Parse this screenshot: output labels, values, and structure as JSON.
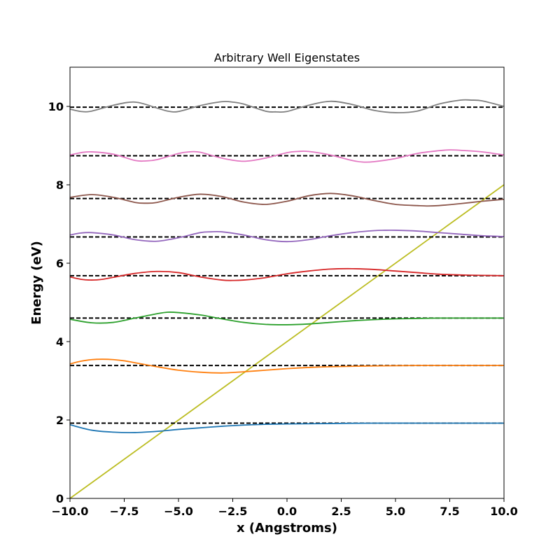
{
  "chart_data": {
    "type": "line",
    "title": "Arbitrary Well Eigenstates",
    "xlabel": "x (Angstroms)",
    "ylabel": "Energy (eV)",
    "xlim": [
      -10,
      10
    ],
    "ylim": [
      0,
      11
    ],
    "x_ticks": [
      -10,
      -7.5,
      -5,
      -2.5,
      0,
      2.5,
      5,
      7.5,
      10
    ],
    "x_tick_labels": [
      "−10.0",
      "−7.5",
      "−5.0",
      "−2.5",
      "0.0",
      "2.5",
      "5.0",
      "7.5",
      "10.0"
    ],
    "y_ticks": [
      0,
      2,
      4,
      6,
      8,
      10
    ],
    "y_tick_labels": [
      "0",
      "2",
      "4",
      "6",
      "8",
      "10"
    ],
    "grid": false,
    "potential": {
      "color": "#bcbd22",
      "x": [
        -10,
        10
      ],
      "y": [
        0,
        8
      ]
    },
    "energy_levels": {
      "color": "#000000",
      "style": "dashed",
      "values": [
        1.92,
        3.39,
        4.6,
        5.68,
        6.67,
        7.65,
        8.74,
        9.98
      ]
    },
    "series": [
      {
        "color": "#1f77b4",
        "x": [
          -10,
          -9,
          -8,
          -7,
          -6,
          -5,
          -4,
          -3,
          -2,
          -1,
          0,
          2,
          4,
          6,
          8,
          10
        ],
        "y": [
          1.88,
          1.74,
          1.69,
          1.68,
          1.71,
          1.76,
          1.8,
          1.84,
          1.87,
          1.89,
          1.9,
          1.91,
          1.92,
          1.92,
          1.92,
          1.92
        ]
      },
      {
        "color": "#ff7f0e",
        "x": [
          -10,
          -9.5,
          -9,
          -8.5,
          -8,
          -7.5,
          -7,
          -6,
          -5,
          -4,
          -3,
          -2,
          -1,
          0,
          1,
          2,
          4,
          6,
          8,
          10
        ],
        "y": [
          3.43,
          3.5,
          3.54,
          3.55,
          3.54,
          3.51,
          3.46,
          3.36,
          3.27,
          3.22,
          3.2,
          3.23,
          3.27,
          3.31,
          3.34,
          3.36,
          3.38,
          3.39,
          3.39,
          3.39
        ]
      },
      {
        "color": "#2ca02c",
        "x": [
          -10,
          -9,
          -8,
          -7,
          -6,
          -5.5,
          -5,
          -4,
          -3,
          -2,
          -1,
          0,
          1,
          2,
          3,
          4,
          5,
          6,
          7,
          8,
          9,
          10
        ],
        "y": [
          4.57,
          4.48,
          4.49,
          4.6,
          4.71,
          4.75,
          4.74,
          4.68,
          4.58,
          4.49,
          4.44,
          4.43,
          4.45,
          4.49,
          4.53,
          4.56,
          4.58,
          4.59,
          4.6,
          4.6,
          4.6,
          4.6
        ]
      },
      {
        "color": "#d62728",
        "x": [
          -10,
          -9.5,
          -9,
          -8.5,
          -8,
          -7,
          -6,
          -5,
          -4,
          -3,
          -2.5,
          -2,
          -1,
          0,
          1,
          2,
          3,
          4,
          5,
          6,
          7,
          8,
          9,
          10
        ],
        "y": [
          5.65,
          5.59,
          5.57,
          5.59,
          5.64,
          5.74,
          5.79,
          5.76,
          5.65,
          5.57,
          5.56,
          5.57,
          5.63,
          5.73,
          5.8,
          5.85,
          5.86,
          5.84,
          5.8,
          5.76,
          5.72,
          5.7,
          5.69,
          5.68
        ]
      },
      {
        "color": "#9467bd",
        "x": [
          -10,
          -9.5,
          -9,
          -8,
          -7,
          -6,
          -5,
          -4,
          -3.5,
          -3,
          -2,
          -1,
          0,
          1,
          2,
          3,
          4,
          4.5,
          5,
          6,
          7,
          8,
          9,
          10
        ],
        "y": [
          6.72,
          6.77,
          6.78,
          6.72,
          6.6,
          6.56,
          6.65,
          6.78,
          6.8,
          6.8,
          6.72,
          6.6,
          6.55,
          6.6,
          6.7,
          6.78,
          6.83,
          6.84,
          6.84,
          6.82,
          6.78,
          6.74,
          6.7,
          6.68
        ]
      },
      {
        "color": "#8c564b",
        "x": [
          -10,
          -9,
          -8,
          -7,
          -6.5,
          -6,
          -5,
          -4,
          -3,
          -2,
          -1,
          0,
          1,
          2,
          3,
          4,
          5,
          6,
          6.5,
          7,
          8,
          9,
          10
        ],
        "y": [
          7.68,
          7.75,
          7.68,
          7.55,
          7.53,
          7.55,
          7.68,
          7.76,
          7.7,
          7.56,
          7.5,
          7.58,
          7.72,
          7.78,
          7.72,
          7.6,
          7.5,
          7.47,
          7.46,
          7.47,
          7.52,
          7.58,
          7.63
        ]
      },
      {
        "color": "#e377c2",
        "x": [
          -10,
          -9.5,
          -9,
          -8,
          -7,
          -6.5,
          -6,
          -5,
          -4.5,
          -4,
          -3,
          -2,
          -1,
          0,
          0.5,
          1,
          2,
          3,
          3.5,
          4,
          5,
          6,
          7,
          7.5,
          8,
          9,
          10
        ],
        "y": [
          8.76,
          8.82,
          8.84,
          8.78,
          8.62,
          8.61,
          8.64,
          8.8,
          8.84,
          8.83,
          8.68,
          8.6,
          8.68,
          8.82,
          8.85,
          8.85,
          8.76,
          8.62,
          8.58,
          8.59,
          8.67,
          8.8,
          8.87,
          8.89,
          8.88,
          8.84,
          8.76
        ]
      },
      {
        "color": "#7f7f7f",
        "x": [
          -10,
          -9.5,
          -9,
          -8,
          -7,
          -6,
          -5.5,
          -5,
          -4,
          -3,
          -2.5,
          -2,
          -1,
          -0.5,
          0,
          1,
          2,
          3,
          4,
          5,
          6,
          7,
          8,
          8.5,
          9,
          10
        ],
        "y": [
          9.93,
          9.87,
          9.88,
          10.03,
          10.11,
          9.96,
          9.88,
          9.87,
          10.02,
          10.12,
          10.11,
          10.06,
          9.88,
          9.86,
          9.87,
          10.03,
          10.13,
          10.05,
          9.9,
          9.84,
          9.88,
          10.06,
          10.16,
          10.16,
          10.14,
          10.0
        ]
      }
    ]
  }
}
